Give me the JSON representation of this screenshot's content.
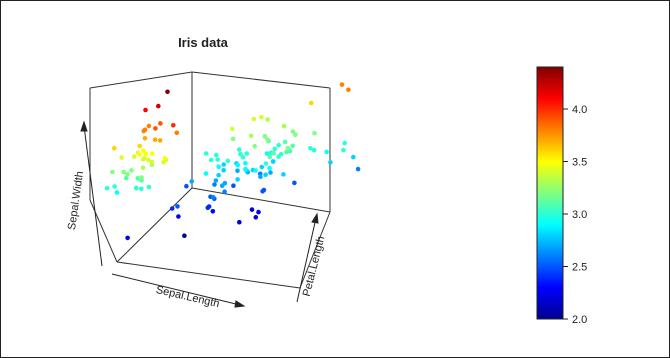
{
  "chart_data": {
    "type": "scatter",
    "title": "Iris data",
    "axes": {
      "x": "Sepal.Length",
      "y": "Sepal.Width",
      "z": "Petal.Length"
    },
    "colorbar": {
      "min": 2.0,
      "max": 4.4,
      "ticks": [
        "2.0",
        "2.5",
        "3.0",
        "3.5",
        "4.0"
      ],
      "palette": [
        "#00008f",
        "#0000ff",
        "#0080ff",
        "#00ffff",
        "#80ff80",
        "#ffff00",
        "#ff8000",
        "#ff0000",
        "#800000"
      ]
    },
    "points": [
      {
        "x": 5.1,
        "y": 3.5,
        "z": 1.4
      },
      {
        "x": 4.9,
        "y": 3.0,
        "z": 1.4
      },
      {
        "x": 4.7,
        "y": 3.2,
        "z": 1.3
      },
      {
        "x": 4.6,
        "y": 3.1,
        "z": 1.5
      },
      {
        "x": 5.0,
        "y": 3.6,
        "z": 1.4
      },
      {
        "x": 5.4,
        "y": 3.9,
        "z": 1.7
      },
      {
        "x": 4.6,
        "y": 3.4,
        "z": 1.4
      },
      {
        "x": 5.0,
        "y": 3.4,
        "z": 1.5
      },
      {
        "x": 4.4,
        "y": 2.9,
        "z": 1.4
      },
      {
        "x": 4.9,
        "y": 3.1,
        "z": 1.5
      },
      {
        "x": 5.4,
        "y": 3.7,
        "z": 1.5
      },
      {
        "x": 4.8,
        "y": 3.4,
        "z": 1.6
      },
      {
        "x": 4.8,
        "y": 3.0,
        "z": 1.4
      },
      {
        "x": 4.3,
        "y": 3.0,
        "z": 1.1
      },
      {
        "x": 5.8,
        "y": 4.0,
        "z": 1.2
      },
      {
        "x": 5.7,
        "y": 4.4,
        "z": 1.5
      },
      {
        "x": 5.4,
        "y": 3.9,
        "z": 1.3
      },
      {
        "x": 5.1,
        "y": 3.5,
        "z": 1.4
      },
      {
        "x": 5.7,
        "y": 3.8,
        "z": 1.7
      },
      {
        "x": 5.1,
        "y": 3.8,
        "z": 1.5
      },
      {
        "x": 5.4,
        "y": 3.4,
        "z": 1.7
      },
      {
        "x": 5.1,
        "y": 3.7,
        "z": 1.5
      },
      {
        "x": 4.6,
        "y": 3.6,
        "z": 1.0
      },
      {
        "x": 5.1,
        "y": 3.3,
        "z": 1.7
      },
      {
        "x": 4.8,
        "y": 3.4,
        "z": 1.9
      },
      {
        "x": 5.0,
        "y": 3.0,
        "z": 1.6
      },
      {
        "x": 5.0,
        "y": 3.4,
        "z": 1.6
      },
      {
        "x": 5.2,
        "y": 3.5,
        "z": 1.5
      },
      {
        "x": 5.2,
        "y": 3.4,
        "z": 1.4
      },
      {
        "x": 4.7,
        "y": 3.2,
        "z": 1.6
      },
      {
        "x": 4.8,
        "y": 3.1,
        "z": 1.6
      },
      {
        "x": 5.4,
        "y": 3.4,
        "z": 1.5
      },
      {
        "x": 5.2,
        "y": 4.1,
        "z": 1.5
      },
      {
        "x": 5.5,
        "y": 4.2,
        "z": 1.4
      },
      {
        "x": 4.9,
        "y": 3.1,
        "z": 1.5
      },
      {
        "x": 5.0,
        "y": 3.2,
        "z": 1.2
      },
      {
        "x": 5.5,
        "y": 3.5,
        "z": 1.3
      },
      {
        "x": 4.4,
        "y": 3.0,
        "z": 1.3
      },
      {
        "x": 5.1,
        "y": 3.4,
        "z": 1.5
      },
      {
        "x": 5.0,
        "y": 3.5,
        "z": 1.3
      },
      {
        "x": 4.5,
        "y": 2.3,
        "z": 1.3
      },
      {
        "x": 4.4,
        "y": 3.2,
        "z": 1.3
      },
      {
        "x": 5.0,
        "y": 3.5,
        "z": 1.6
      },
      {
        "x": 5.1,
        "y": 3.8,
        "z": 1.9
      },
      {
        "x": 4.8,
        "y": 3.0,
        "z": 1.4
      },
      {
        "x": 5.1,
        "y": 3.8,
        "z": 1.6
      },
      {
        "x": 4.6,
        "y": 3.2,
        "z": 1.4
      },
      {
        "x": 5.3,
        "y": 3.7,
        "z": 1.5
      },
      {
        "x": 5.0,
        "y": 3.3,
        "z": 1.4
      },
      {
        "x": 7.0,
        "y": 3.2,
        "z": 4.7
      },
      {
        "x": 6.4,
        "y": 3.2,
        "z": 4.5
      },
      {
        "x": 6.9,
        "y": 3.1,
        "z": 4.9
      },
      {
        "x": 5.5,
        "y": 2.3,
        "z": 4.0
      },
      {
        "x": 6.5,
        "y": 2.8,
        "z": 4.6
      },
      {
        "x": 5.7,
        "y": 2.8,
        "z": 4.5
      },
      {
        "x": 6.3,
        "y": 3.3,
        "z": 4.7
      },
      {
        "x": 4.9,
        "y": 2.4,
        "z": 3.3
      },
      {
        "x": 6.6,
        "y": 2.9,
        "z": 4.6
      },
      {
        "x": 5.2,
        "y": 2.7,
        "z": 3.9
      },
      {
        "x": 5.0,
        "y": 2.0,
        "z": 3.5
      },
      {
        "x": 5.9,
        "y": 3.0,
        "z": 4.2
      },
      {
        "x": 6.0,
        "y": 2.2,
        "z": 4.0
      },
      {
        "x": 6.1,
        "y": 2.9,
        "z": 4.7
      },
      {
        "x": 5.6,
        "y": 2.9,
        "z": 3.6
      },
      {
        "x": 6.7,
        "y": 3.1,
        "z": 4.4
      },
      {
        "x": 5.6,
        "y": 3.0,
        "z": 4.5
      },
      {
        "x": 5.8,
        "y": 2.7,
        "z": 4.1
      },
      {
        "x": 6.2,
        "y": 2.2,
        "z": 4.5
      },
      {
        "x": 5.6,
        "y": 2.5,
        "z": 3.9
      },
      {
        "x": 5.9,
        "y": 3.2,
        "z": 4.8
      },
      {
        "x": 6.1,
        "y": 2.8,
        "z": 4.0
      },
      {
        "x": 6.3,
        "y": 2.5,
        "z": 4.9
      },
      {
        "x": 6.1,
        "y": 2.8,
        "z": 4.7
      },
      {
        "x": 6.4,
        "y": 2.9,
        "z": 4.3
      },
      {
        "x": 6.6,
        "y": 3.0,
        "z": 4.4
      },
      {
        "x": 6.8,
        "y": 2.8,
        "z": 4.8
      },
      {
        "x": 6.7,
        "y": 3.0,
        "z": 5.0
      },
      {
        "x": 6.0,
        "y": 2.9,
        "z": 4.5
      },
      {
        "x": 5.7,
        "y": 2.6,
        "z": 3.5
      },
      {
        "x": 5.5,
        "y": 2.4,
        "z": 3.8
      },
      {
        "x": 5.5,
        "y": 2.4,
        "z": 3.7
      },
      {
        "x": 5.8,
        "y": 2.7,
        "z": 3.9
      },
      {
        "x": 6.0,
        "y": 2.7,
        "z": 5.1
      },
      {
        "x": 5.4,
        "y": 3.0,
        "z": 4.5
      },
      {
        "x": 6.0,
        "y": 3.4,
        "z": 4.5
      },
      {
        "x": 6.7,
        "y": 3.1,
        "z": 4.7
      },
      {
        "x": 6.3,
        "y": 2.3,
        "z": 4.4
      },
      {
        "x": 5.6,
        "y": 3.0,
        "z": 4.1
      },
      {
        "x": 5.5,
        "y": 2.5,
        "z": 4.0
      },
      {
        "x": 5.5,
        "y": 2.6,
        "z": 4.4
      },
      {
        "x": 6.1,
        "y": 3.0,
        "z": 4.6
      },
      {
        "x": 5.8,
        "y": 2.6,
        "z": 4.0
      },
      {
        "x": 5.0,
        "y": 2.3,
        "z": 3.3
      },
      {
        "x": 5.6,
        "y": 2.7,
        "z": 4.2
      },
      {
        "x": 5.7,
        "y": 3.0,
        "z": 4.2
      },
      {
        "x": 5.7,
        "y": 2.9,
        "z": 4.2
      },
      {
        "x": 6.2,
        "y": 2.9,
        "z": 4.3
      },
      {
        "x": 5.1,
        "y": 2.5,
        "z": 3.0
      },
      {
        "x": 5.7,
        "y": 2.8,
        "z": 4.1
      },
      {
        "x": 6.3,
        "y": 3.3,
        "z": 6.0
      },
      {
        "x": 5.8,
        "y": 2.7,
        "z": 5.1
      },
      {
        "x": 7.1,
        "y": 3.0,
        "z": 5.9
      },
      {
        "x": 6.3,
        "y": 2.9,
        "z": 5.6
      },
      {
        "x": 6.5,
        "y": 3.0,
        "z": 5.8
      },
      {
        "x": 7.6,
        "y": 3.0,
        "z": 6.6
      },
      {
        "x": 4.9,
        "y": 2.5,
        "z": 4.5
      },
      {
        "x": 7.3,
        "y": 2.9,
        "z": 6.3
      },
      {
        "x": 6.7,
        "y": 2.5,
        "z": 5.8
      },
      {
        "x": 7.2,
        "y": 3.6,
        "z": 6.1
      },
      {
        "x": 6.5,
        "y": 3.2,
        "z": 5.1
      },
      {
        "x": 6.4,
        "y": 2.7,
        "z": 5.3
      },
      {
        "x": 6.8,
        "y": 3.0,
        "z": 5.5
      },
      {
        "x": 5.7,
        "y": 2.5,
        "z": 5.0
      },
      {
        "x": 5.8,
        "y": 2.8,
        "z": 5.1
      },
      {
        "x": 6.4,
        "y": 3.2,
        "z": 5.3
      },
      {
        "x": 6.5,
        "y": 3.0,
        "z": 5.5
      },
      {
        "x": 7.7,
        "y": 3.8,
        "z": 6.7
      },
      {
        "x": 7.7,
        "y": 2.6,
        "z": 6.9
      },
      {
        "x": 6.0,
        "y": 2.2,
        "z": 5.0
      },
      {
        "x": 6.9,
        "y": 3.2,
        "z": 5.7
      },
      {
        "x": 5.6,
        "y": 2.8,
        "z": 4.9
      },
      {
        "x": 7.7,
        "y": 2.8,
        "z": 6.7
      },
      {
        "x": 6.3,
        "y": 2.7,
        "z": 4.9
      },
      {
        "x": 6.7,
        "y": 3.3,
        "z": 5.7
      },
      {
        "x": 7.2,
        "y": 3.2,
        "z": 6.0
      },
      {
        "x": 6.2,
        "y": 2.8,
        "z": 4.8
      },
      {
        "x": 6.1,
        "y": 3.0,
        "z": 4.9
      },
      {
        "x": 6.4,
        "y": 2.8,
        "z": 5.6
      },
      {
        "x": 7.2,
        "y": 3.0,
        "z": 5.8
      },
      {
        "x": 7.4,
        "y": 2.8,
        "z": 6.1
      },
      {
        "x": 7.9,
        "y": 3.8,
        "z": 6.4
      },
      {
        "x": 6.4,
        "y": 2.8,
        "z": 5.6
      },
      {
        "x": 6.3,
        "y": 2.8,
        "z": 5.1
      },
      {
        "x": 6.1,
        "y": 2.6,
        "z": 5.6
      },
      {
        "x": 7.7,
        "y": 3.0,
        "z": 6.1
      },
      {
        "x": 6.3,
        "y": 3.4,
        "z": 5.6
      },
      {
        "x": 6.4,
        "y": 3.1,
        "z": 5.5
      },
      {
        "x": 6.0,
        "y": 3.0,
        "z": 4.8
      },
      {
        "x": 6.9,
        "y": 3.1,
        "z": 5.4
      },
      {
        "x": 6.7,
        "y": 3.1,
        "z": 5.6
      },
      {
        "x": 6.9,
        "y": 3.1,
        "z": 5.1
      },
      {
        "x": 6.8,
        "y": 3.2,
        "z": 5.9
      },
      {
        "x": 6.7,
        "y": 3.3,
        "z": 5.7
      },
      {
        "x": 6.7,
        "y": 3.0,
        "z": 5.2
      },
      {
        "x": 6.3,
        "y": 2.5,
        "z": 5.0
      },
      {
        "x": 6.5,
        "y": 3.0,
        "z": 5.2
      },
      {
        "x": 6.2,
        "y": 3.4,
        "z": 5.4
      },
      {
        "x": 5.9,
        "y": 3.0,
        "z": 5.1
      }
    ]
  }
}
